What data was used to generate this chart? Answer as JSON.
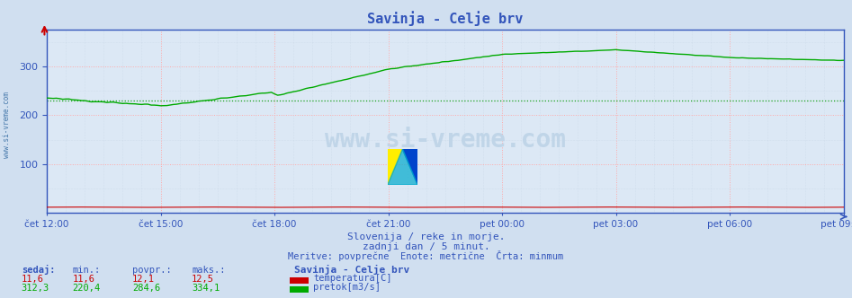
{
  "title": "Savinja - Celje brv",
  "bg_color": "#d0dff0",
  "plot_bg_color": "#dce8f5",
  "grid_color": "#ffaaaa",
  "grid_color2": "#bbccdd",
  "grid_linestyle": ":",
  "xlabel_ticks": [
    "čet 12:00",
    "čet 15:00",
    "čet 18:00",
    "čet 21:00",
    "pet 00:00",
    "pet 03:00",
    "pet 06:00",
    "pet 09:00"
  ],
  "x_tick_positions": [
    0,
    36,
    72,
    108,
    144,
    180,
    216,
    252
  ],
  "total_points": 253,
  "ylim": [
    0,
    375
  ],
  "yticks": [
    100,
    200,
    300
  ],
  "flow_color": "#00aa00",
  "temp_color": "#cc0000",
  "avg_line_color": "#009900",
  "avg_line_style": ":",
  "avg_value": 230,
  "subtitle1": "Slovenija / reke in morje.",
  "subtitle2": "zadnji dan / 5 minut.",
  "subtitle3": "Meritve: povprečne  Enote: metrične  Črta: minmum",
  "subtitle_color": "#3355bb",
  "legend_title": "Savinja - Celje brv",
  "legend_items": [
    "temperatura[C]",
    "pretok[m3/s]"
  ],
  "legend_colors": [
    "#cc0000",
    "#00aa00"
  ],
  "stats_labels": [
    "sedaj:",
    "min.:",
    "povpr.:",
    "maks.:"
  ],
  "stats_temp": [
    "11,6",
    "11,6",
    "12,1",
    "12,5"
  ],
  "stats_flow": [
    "312,3",
    "220,4",
    "284,6",
    "334,1"
  ],
  "watermark": "www.si-vreme.com",
  "watermark_color": "#c0d5e8",
  "left_label": "www.si-vreme.com",
  "left_label_color": "#4477aa",
  "axis_color": "#3355bb",
  "tick_color": "#3355bb",
  "title_color": "#3355bb",
  "temp_segment_start": 72,
  "temp_segment_end": 108
}
